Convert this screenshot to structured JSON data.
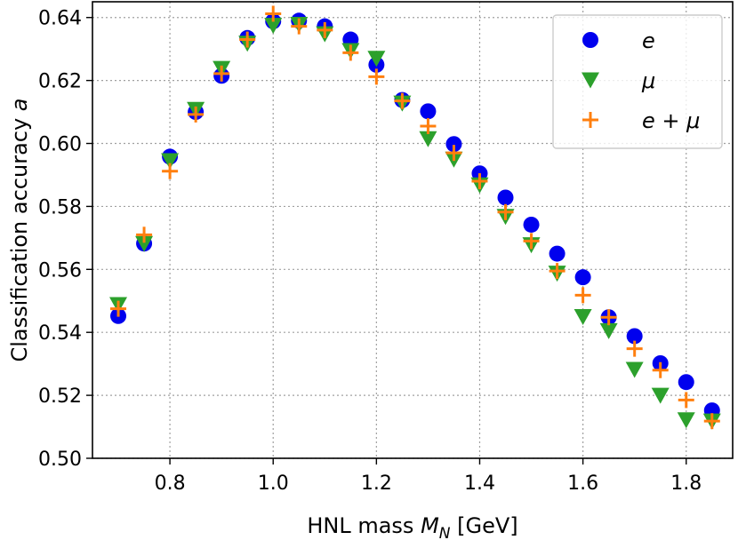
{
  "chart_data": {
    "type": "scatter",
    "xlabel_prefix": "HNL mass ",
    "xlabel_symbol": "M",
    "xlabel_subscript": "N",
    "xlabel_suffix": " [GeV]",
    "ylabel_prefix": "Classification accuracy ",
    "ylabel_symbol": "a",
    "xlim": [
      0.65,
      1.89
    ],
    "ylim": [
      0.5,
      0.645
    ],
    "xticks": [
      0.8,
      1.0,
      1.2,
      1.4,
      1.6,
      1.8
    ],
    "xtick_labels": [
      "0.8",
      "1.0",
      "1.2",
      "1.4",
      "1.6",
      "1.8"
    ],
    "yticks": [
      0.5,
      0.52,
      0.54,
      0.56,
      0.58,
      0.6,
      0.62,
      0.64
    ],
    "ytick_labels": [
      "0.50",
      "0.52",
      "0.54",
      "0.56",
      "0.58",
      "0.60",
      "0.62",
      "0.64"
    ],
    "grid": true,
    "legend_position": "top-right",
    "x": [
      0.7,
      0.75,
      0.8,
      0.85,
      0.9,
      0.95,
      1.0,
      1.05,
      1.1,
      1.15,
      1.2,
      1.25,
      1.3,
      1.35,
      1.4,
      1.45,
      1.5,
      1.55,
      1.6,
      1.65,
      1.7,
      1.75,
      1.8,
      1.85
    ],
    "series": [
      {
        "name": "e",
        "marker": "circle",
        "color": "#0000ee",
        "values": [
          0.5452,
          0.5682,
          0.5958,
          0.61,
          0.6215,
          0.6335,
          0.6388,
          0.639,
          0.6372,
          0.633,
          0.625,
          0.6138,
          0.6102,
          0.5998,
          0.5905,
          0.5828,
          0.5742,
          0.565,
          0.5575,
          0.5448,
          0.5388,
          0.5302,
          0.5242,
          0.5152
        ]
      },
      {
        "name": "μ",
        "marker": "triangle-down",
        "color": "#2ca02c",
        "values": [
          0.5488,
          0.5682,
          0.5945,
          0.6108,
          0.6238,
          0.6318,
          0.6375,
          0.6378,
          0.6348,
          0.6295,
          0.627,
          0.6128,
          0.6015,
          0.595,
          0.5868,
          0.5768,
          0.5678,
          0.5588,
          0.545,
          0.5405,
          0.5282,
          0.52,
          0.5122,
          0.5118
        ]
      },
      {
        "name": "e + μ",
        "marker": "plus",
        "color": "#ff7f0e",
        "values": [
          0.5475,
          0.571,
          0.5912,
          0.6092,
          0.6222,
          0.633,
          0.6412,
          0.6372,
          0.636,
          0.6288,
          0.6212,
          0.6135,
          0.6055,
          0.597,
          0.588,
          0.5782,
          0.569,
          0.5595,
          0.5518,
          0.5448,
          0.5348,
          0.528,
          0.5185,
          0.5118
        ]
      }
    ]
  }
}
